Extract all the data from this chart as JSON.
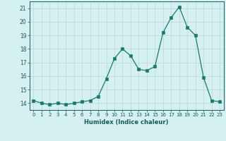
{
  "x": [
    0,
    1,
    2,
    3,
    4,
    5,
    6,
    7,
    8,
    9,
    10,
    11,
    12,
    13,
    14,
    15,
    16,
    17,
    18,
    19,
    20,
    21,
    22,
    23
  ],
  "y": [
    14.2,
    14.0,
    13.9,
    14.0,
    13.9,
    14.0,
    14.1,
    14.2,
    14.5,
    15.8,
    17.3,
    18.0,
    17.5,
    16.5,
    16.4,
    16.7,
    19.2,
    20.3,
    21.1,
    19.6,
    19.0,
    15.9,
    14.2,
    14.1
  ],
  "xlabel": "Humidex (Indice chaleur)",
  "xlim": [
    -0.5,
    23.5
  ],
  "ylim": [
    13.5,
    21.5
  ],
  "yticks": [
    14,
    15,
    16,
    17,
    18,
    19,
    20,
    21
  ],
  "xticks": [
    0,
    1,
    2,
    3,
    4,
    5,
    6,
    7,
    8,
    9,
    10,
    11,
    12,
    13,
    14,
    15,
    16,
    17,
    18,
    19,
    20,
    21,
    22,
    23
  ],
  "line_color": "#1a7a6a",
  "marker_color": "#1a7a6a",
  "bg_color": "#d4f0f0",
  "grid_color": "#c0dada",
  "label_color": "#1a5a5a",
  "tick_color": "#1a5a5a"
}
